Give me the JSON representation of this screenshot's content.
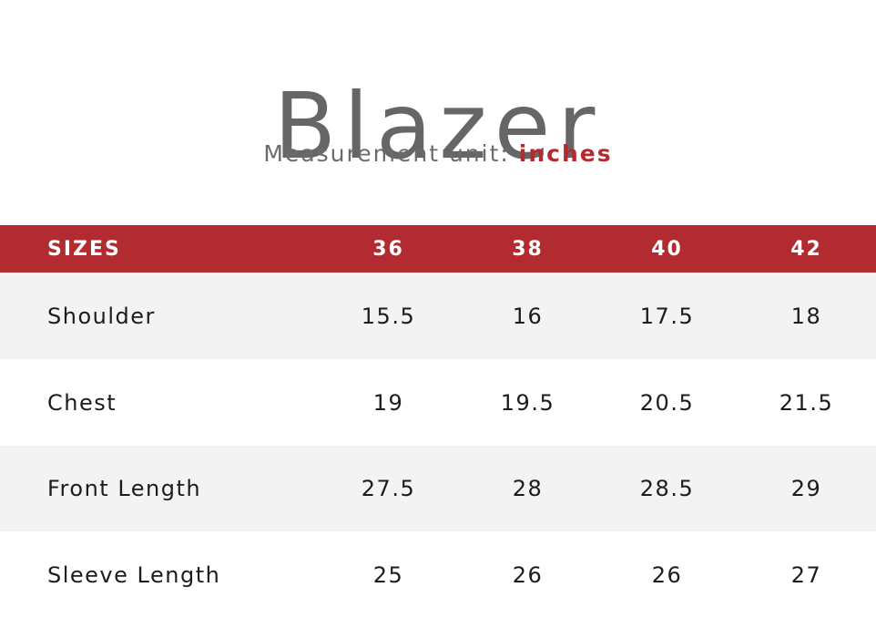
{
  "title": "Blazer",
  "unit": {
    "label": "Measurement unit:",
    "value": "inches"
  },
  "table": {
    "header_label": "SIZES",
    "sizes": [
      "36",
      "38",
      "40",
      "42"
    ],
    "rows": [
      {
        "label": "Shoulder",
        "values": [
          "15.5",
          "16",
          "17.5",
          "18"
        ]
      },
      {
        "label": "Chest",
        "values": [
          "19",
          "19.5",
          "20.5",
          "21.5"
        ]
      },
      {
        "label": "Front Length",
        "values": [
          "27.5",
          "28",
          "28.5",
          "29"
        ]
      },
      {
        "label": "Sleeve Length",
        "values": [
          "25",
          "26",
          "26",
          "27"
        ]
      }
    ]
  },
  "colors": {
    "accent": "#b22b30",
    "title": "#666666",
    "row_shade": "#f3f3f3"
  }
}
